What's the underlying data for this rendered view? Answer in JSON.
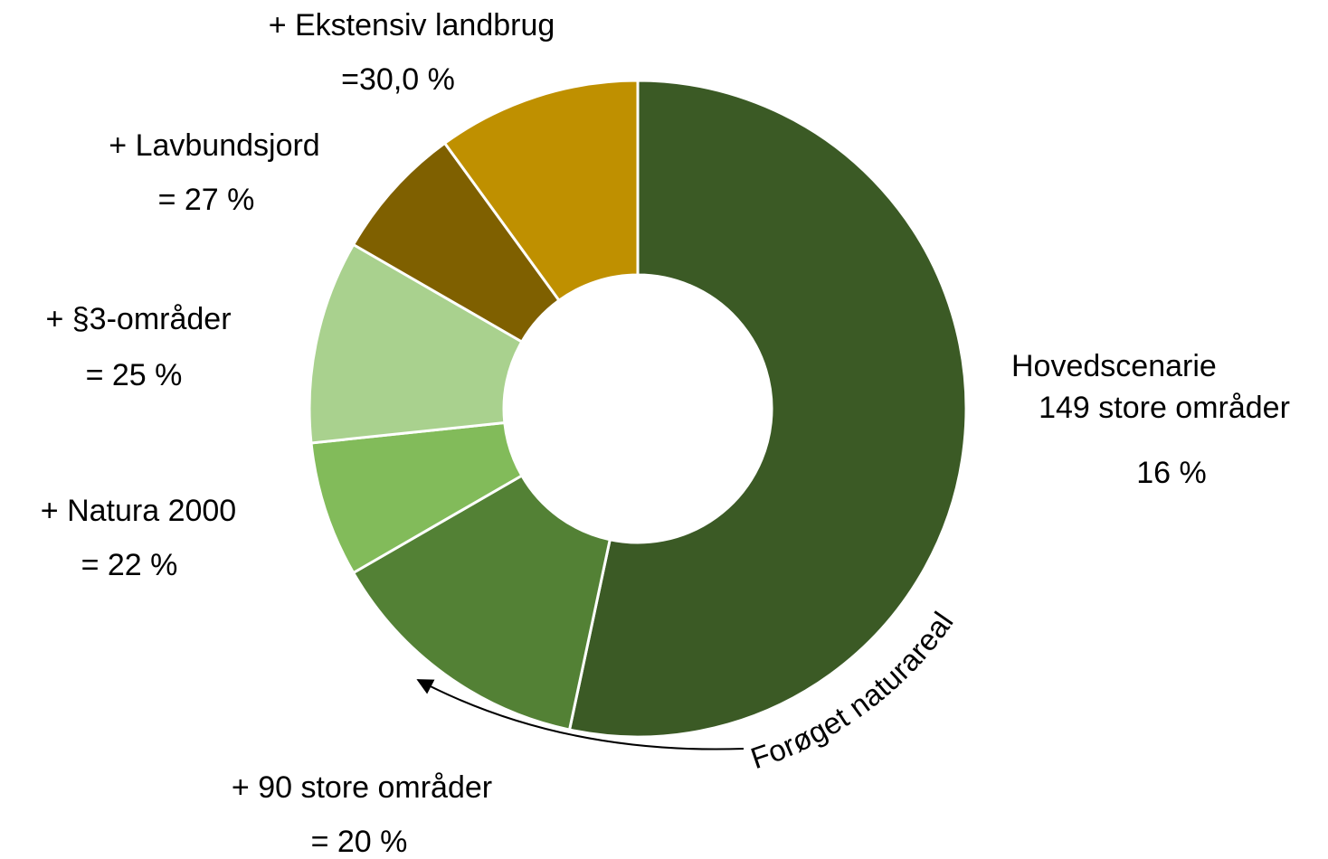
{
  "chart_data": {
    "type": "donut",
    "cumulative": true,
    "categories": [
      [
        "Hovedscenarie",
        "149 store områder"
      ],
      [
        "+ 90 store områder"
      ],
      [
        "+ Natura 2000"
      ],
      [
        "+ §3-områder"
      ],
      [
        "+ Lavbundsjord"
      ],
      [
        "+ Ekstensiv landbrug"
      ]
    ],
    "values": [
      16,
      20,
      22,
      25,
      27,
      30
    ],
    "value_labels": [
      "16 %",
      "= 20 %",
      "= 22 %",
      "= 25 %",
      "= 27 %",
      "=30,0 %"
    ],
    "colors": [
      "#3b5a25",
      "#538135",
      "#82bb5a",
      "#a9d18e",
      "#7f6000",
      "#bf9000"
    ],
    "annotation": "Forøget naturareal"
  }
}
